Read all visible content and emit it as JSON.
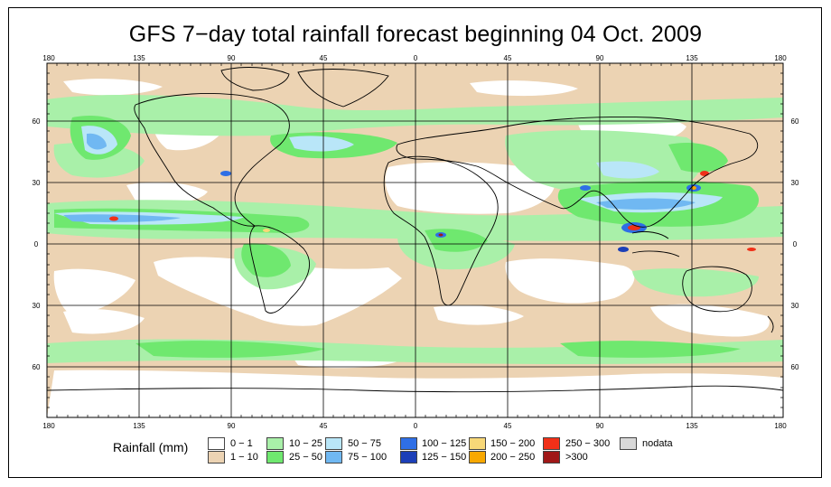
{
  "title": "GFS 7−day total rainfall forecast beginning 04 Oct. 2009",
  "axes": {
    "top_lon_labels": [
      "180",
      "135",
      "90",
      "45",
      "0",
      "45",
      "90",
      "135",
      "180"
    ],
    "bottom_lon_labels": [
      "180",
      "135",
      "90",
      "45",
      "0",
      "45",
      "90",
      "135",
      "180"
    ],
    "left_lat_labels": [
      "60",
      "30",
      "0",
      "30",
      "60"
    ],
    "right_lat_labels": [
      "60",
      "30",
      "0",
      "30",
      "60"
    ]
  },
  "legend": {
    "title": "Rainfall (mm)",
    "items": [
      {
        "label": "0 − 1",
        "color": "#ffffff"
      },
      {
        "label": "1 − 10",
        "color": "#ecd3b3"
      },
      {
        "label": "10 − 25",
        "color": "#a9f0a9"
      },
      {
        "label": "25 − 50",
        "color": "#6fe86f"
      },
      {
        "label": "50 − 75",
        "color": "#b9e6f8"
      },
      {
        "label": "75 − 100",
        "color": "#70b8f2"
      },
      {
        "label": "100 − 125",
        "color": "#2f6fe6"
      },
      {
        "label": "125 − 150",
        "color": "#1c3fb8"
      },
      {
        "label": "150 − 200",
        "color": "#f8d878"
      },
      {
        "label": "200 − 250",
        "color": "#f8a800"
      },
      {
        "label": "250 − 300",
        "color": "#f03018"
      },
      {
        "label": ">300",
        "color": "#a01818"
      },
      {
        "label": "nodata",
        "color": "#d8d8d8"
      }
    ]
  }
}
